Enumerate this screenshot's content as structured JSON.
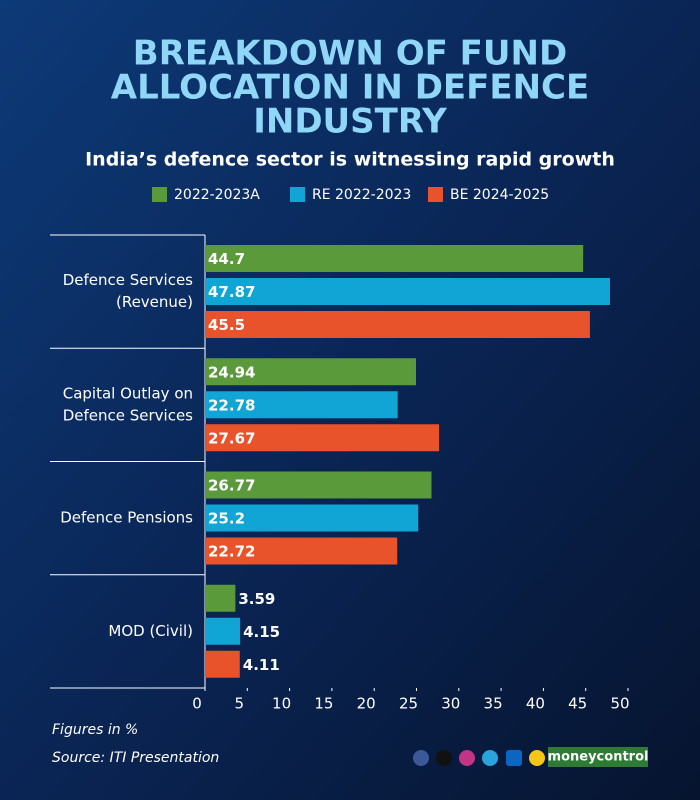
{
  "chart_data": {
    "type": "hbar",
    "title": [
      "BREAKDOWN OF FUND",
      "ALLOCATION IN DEFENCE",
      "INDUSTRY"
    ],
    "subtitle": "India’s defence sector is witnessing rapid growth",
    "categories": [
      [
        "Defence Services",
        "(Revenue)"
      ],
      [
        "Capital Outlay on",
        "Defence Services"
      ],
      [
        "Defence Pensions"
      ],
      [
        "MOD (Civil)"
      ]
    ],
    "series": [
      {
        "name": "2022-2023A",
        "color": "#5b9a3b",
        "values": [
          44.7,
          24.94,
          26.77,
          3.59
        ]
      },
      {
        "name": "RE 2022-2023",
        "color": "#10a5d4",
        "values": [
          47.87,
          22.78,
          25.2,
          4.15
        ]
      },
      {
        "name": "BE 2024-2025",
        "color": "#e9532b",
        "values": [
          45.5,
          27.67,
          22.72,
          4.11
        ]
      }
    ],
    "xlim": [
      0,
      50
    ],
    "xticks": [
      0,
      5,
      10,
      15,
      20,
      25,
      30,
      35,
      40,
      45,
      50
    ],
    "note": "Figures in %",
    "source": "Source: ITI Presentation",
    "brand": "moneycontrol"
  }
}
